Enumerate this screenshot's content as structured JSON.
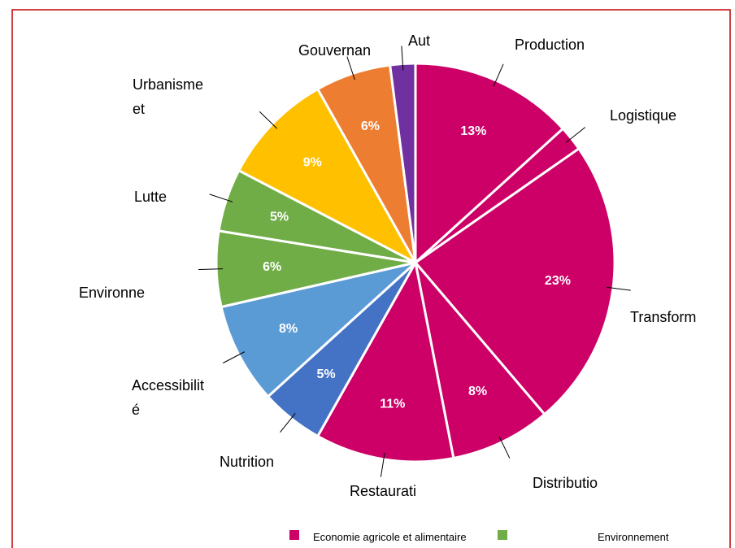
{
  "chart_data": {
    "type": "pie",
    "categories": [
      "Production",
      "Logistique",
      "Transform",
      "Distributio",
      "Restaurati",
      "Nutrition",
      "Accessibilité",
      "Environne",
      "Lutte",
      "Urbanisme et",
      "Gouvernan",
      "Aut"
    ],
    "values": [
      13,
      2,
      23,
      8,
      11,
      5,
      8,
      6,
      5,
      9,
      6,
      2
    ],
    "value_labels": [
      "13%",
      null,
      "23%",
      "8%",
      "11%",
      "5%",
      "8%",
      "6%",
      "5%",
      "9%",
      "6%",
      null
    ],
    "colors": [
      "#cc0066",
      "#cc0066",
      "#cc0066",
      "#cc0066",
      "#cc0066",
      "#4472c4",
      "#5b9bd5",
      "#70ad47",
      "#70ad47",
      "#ffc000",
      "#ed7d31",
      "#7030a0"
    ],
    "legend": [
      {
        "name": "Economie agricole et alimentaire",
        "color": "#cc0066"
      },
      {
        "name": "Environnement",
        "color": "#70ad47"
      }
    ]
  }
}
